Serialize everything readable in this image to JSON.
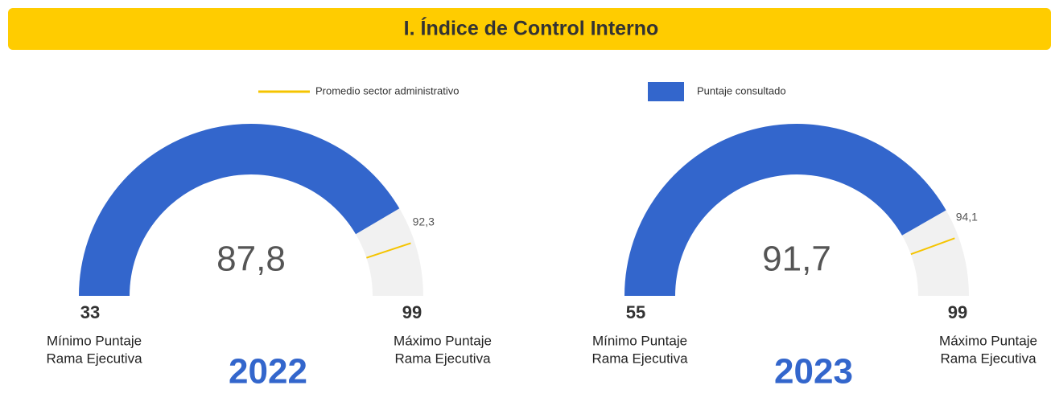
{
  "header": {
    "title": "I. Índice de Control Interno"
  },
  "legend": [
    {
      "name": "Promedio sector administrativo",
      "color": "#f5c400",
      "kind": "line"
    },
    {
      "name": "Puntaje consultado",
      "color": "#3366cc",
      "kind": "box"
    }
  ],
  "chart_data": [
    {
      "type": "gauge",
      "title": "2022",
      "values": [
        87.8
      ],
      "value_labels": [
        "87,8"
      ],
      "color": "#3366cc",
      "track_color": "#f1f1f1",
      "ylim": [
        33,
        99
      ],
      "yticks": [
        33,
        99
      ],
      "min_label": [
        "Mínimo Puntaje",
        "Rama Ejecutiva"
      ],
      "max_label": [
        "Máximo Puntaje",
        "Rama Ejecutiva"
      ],
      "reference": {
        "value": 92.3,
        "label": "92,3",
        "color": "#f5c400"
      }
    },
    {
      "type": "gauge",
      "title": "2023",
      "values": [
        91.7
      ],
      "value_labels": [
        "91,7"
      ],
      "color": "#3366cc",
      "track_color": "#f1f1f1",
      "ylim": [
        55,
        99
      ],
      "yticks": [
        55,
        99
      ],
      "min_label": [
        "Mínimo Puntaje",
        "Rama Ejecutiva"
      ],
      "max_label": [
        "Máximo Puntaje",
        "Rama Ejecutiva"
      ],
      "reference": {
        "value": 94.1,
        "label": "94,1",
        "color": "#f5c400"
      }
    }
  ]
}
